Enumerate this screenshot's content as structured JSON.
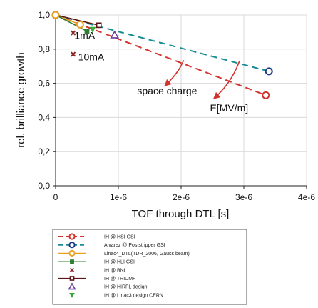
{
  "chart_data": {
    "type": "line",
    "xlabel": "TOF through DTL [s]",
    "ylabel": "rel. brilliance growth",
    "xlim": [
      0,
      4e-06
    ],
    "ylim": [
      0,
      1.0
    ],
    "x_ticks": [
      {
        "value": 0,
        "label": "0"
      },
      {
        "value": 1e-06,
        "label": "1e-6"
      },
      {
        "value": 2e-06,
        "label": "2e-6"
      },
      {
        "value": 3e-06,
        "label": "3e-6"
      },
      {
        "value": 4e-06,
        "label": "4e-6"
      }
    ],
    "y_ticks": [
      {
        "value": 0,
        "label": "0,0"
      },
      {
        "value": 0.2,
        "label": "0,2"
      },
      {
        "value": 0.4,
        "label": "0,4"
      },
      {
        "value": 0.6,
        "label": "0,6"
      },
      {
        "value": 0.8,
        "label": "0,8"
      },
      {
        "value": 1.0,
        "label": "1,0"
      }
    ],
    "grid": true,
    "legend_position": "below",
    "series": [
      {
        "name": "IH @ HSI GSI",
        "color": "#d2332d",
        "dash": "dashed",
        "marker": "circle",
        "points": [
          [
            0,
            1.0
          ],
          [
            3.35e-06,
            0.53
          ]
        ],
        "marker_points": [
          [
            0,
            1.0
          ],
          [
            3.35e-06,
            0.53
          ]
        ]
      },
      {
        "name": "Alvarez @ Poststripper GSI",
        "color": "#1a8c94",
        "dash": "dashed",
        "marker": "circle",
        "points": [
          [
            0,
            1.0
          ],
          [
            3.4e-06,
            0.67
          ]
        ],
        "marker_points": [
          [
            0,
            1.0
          ],
          [
            3.4e-06,
            0.67
          ]
        ],
        "marker_edge": "#1f3a8a"
      },
      {
        "name": "Linac4_DTL(TDR_2006, Gauss beam)",
        "color": "#e8a020",
        "dash": "solid",
        "marker": "circle",
        "points": [
          [
            0,
            1.0
          ],
          [
            3.9e-07,
            0.944
          ]
        ],
        "marker_points": [
          [
            0,
            1.0
          ],
          [
            3.9e-07,
            0.944
          ]
        ]
      },
      {
        "name": "IH @ HLI GSI",
        "color": "#2e7d32",
        "dash": "solid",
        "marker": "square",
        "points": [
          [
            0,
            1.0
          ],
          [
            5e-07,
            0.905
          ]
        ],
        "marker_points": [
          [
            5e-07,
            0.905
          ]
        ]
      },
      {
        "name": "IH @ BNL",
        "color": "#8b2a2a",
        "dash": "none",
        "marker": "x",
        "points": [
          [
            2.8e-07,
            0.895
          ],
          [
            2.8e-07,
            0.77
          ]
        ],
        "marker_points": [
          [
            2.8e-07,
            0.895
          ],
          [
            2.8e-07,
            0.77
          ]
        ]
      },
      {
        "name": "IH @ TRIUMF",
        "color": "#5a1414",
        "dash": "solid",
        "marker": "square-open",
        "points": [
          [
            0,
            1.0
          ],
          [
            6.9e-07,
            0.94
          ]
        ],
        "marker_points": [
          [
            6.9e-07,
            0.94
          ]
        ]
      },
      {
        "name": "IH @ HIRFL design",
        "color": "#6a3d9a",
        "dash": "none",
        "marker": "triangle-up",
        "points": [
          [
            9.4e-07,
            0.883
          ]
        ],
        "marker_points": [
          [
            9.4e-07,
            0.883
          ]
        ]
      },
      {
        "name": "IH @ Linac3 design CERN",
        "color": "#3aa83a",
        "dash": "none",
        "marker": "triangle-down",
        "points": [
          [
            5.9e-07,
            0.916
          ]
        ],
        "marker_points": [
          [
            5.9e-07,
            0.916
          ]
        ]
      }
    ],
    "annotations": [
      {
        "id": "label-1ma",
        "text": "1mA",
        "x": 3e-07,
        "y": 0.86
      },
      {
        "id": "label-10ma",
        "text": "10mA",
        "x": 3.6e-07,
        "y": 0.735
      },
      {
        "id": "label-space-charge",
        "text": "space charge",
        "x": 1.3e-06,
        "y": 0.535
      },
      {
        "id": "label-e-field",
        "text": "E[MV/m]",
        "x": 2.46e-06,
        "y": 0.435
      }
    ],
    "arrows": [
      {
        "id": "arrow-space-charge",
        "from": [
          2.04e-06,
          0.735
        ],
        "ctrl": [
          1.96e-06,
          0.66
        ],
        "to": [
          1.74e-06,
          0.585
        ]
      },
      {
        "id": "arrow-e-field",
        "from": [
          2.93e-06,
          0.73
        ],
        "ctrl": [
          2.8e-06,
          0.6
        ],
        "to": [
          2.52e-06,
          0.51
        ]
      }
    ]
  },
  "legend": {
    "entries": [
      {
        "label": "IH @ HSI GSI",
        "series": 0
      },
      {
        "label": "Alvarez @ Poststripper GSI",
        "series": 1
      },
      {
        "label": "Linac4_DTL(TDR_2006, Gauss beam)",
        "series": 2
      },
      {
        "label": "IH @ HLI GSI",
        "series": 3
      },
      {
        "label": "IH @ BNL",
        "series": 4
      },
      {
        "label": "IH @ TRIUMF",
        "series": 5
      },
      {
        "label": "IH @ HIRFL design",
        "series": 6
      },
      {
        "label": "IH @ Linac3 design CERN",
        "series": 7
      }
    ]
  }
}
